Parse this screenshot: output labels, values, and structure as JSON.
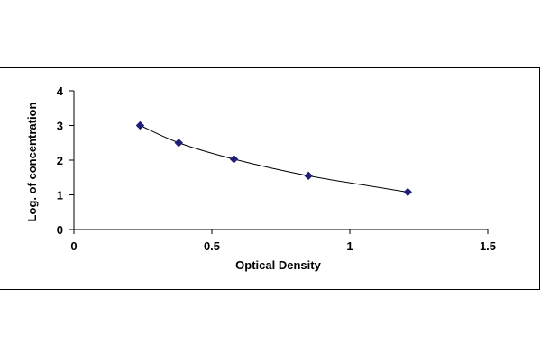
{
  "chart_data": {
    "type": "scatter",
    "title": "",
    "xlabel": "Optical Density",
    "ylabel": "Log. of concentration",
    "xlim": [
      0,
      1.5
    ],
    "ylim": [
      0,
      4
    ],
    "xticks": [
      "0",
      "0.5",
      "1",
      "1.5"
    ],
    "yticks": [
      "0",
      "1",
      "2",
      "3",
      "4"
    ],
    "grid": false,
    "legend": "none",
    "trendline": true,
    "marker": "diamond",
    "colors": {
      "marker": "#1f1f7a",
      "line": "#000000"
    },
    "series": [
      {
        "x": [
          0.24,
          0.38,
          0.58,
          0.85,
          1.21
        ],
        "y": [
          3.0,
          2.5,
          2.03,
          1.55,
          1.08
        ]
      }
    ]
  }
}
